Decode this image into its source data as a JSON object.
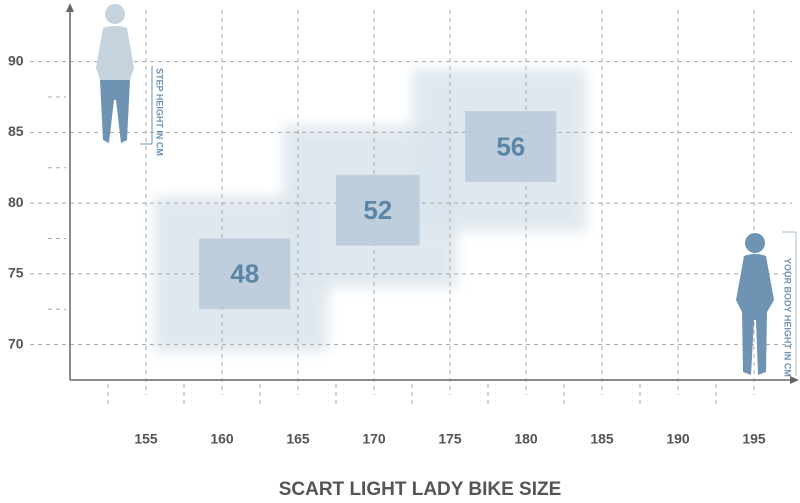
{
  "chart_data": {
    "type": "size-range",
    "title": "SCART LIGHT LADY BIKE SIZE",
    "x_note": "YOUR BODY HEIGHT IN CM",
    "y_note": "STEP HEIGHT IN CM",
    "xlim": [
      150,
      197.5
    ],
    "ylim": [
      67.5,
      94
    ],
    "xticks": [
      155,
      160,
      165,
      170,
      175,
      180,
      185,
      190,
      195
    ],
    "xminorticks": [
      152.5,
      157.5,
      162.5,
      167.5,
      172.5,
      177.5,
      182.5,
      187.5,
      192.5
    ],
    "yticks": [
      70,
      75,
      80,
      85,
      90
    ],
    "yminorticks": [
      72.5,
      77.5,
      82.5,
      87.5
    ],
    "grid": true,
    "color": "#b7c9d8",
    "halo_color": "#dbe5ed",
    "sizes": [
      {
        "label": "48",
        "x": [
          158.5,
          164.5
        ],
        "y": [
          72.5,
          77.5
        ],
        "x_range": [
          155.5,
          167
        ],
        "y_range": [
          69.5,
          80.5
        ]
      },
      {
        "label": "52",
        "x": [
          167.5,
          173
        ],
        "y": [
          77,
          82
        ],
        "x_range": [
          164,
          175.5
        ],
        "y_range": [
          74,
          85.5
        ]
      },
      {
        "label": "56",
        "x": [
          176,
          182
        ],
        "y": [
          81.5,
          86.5
        ],
        "x_range": [
          172.5,
          184
        ],
        "y_range": [
          78,
          89.5
        ]
      }
    ]
  }
}
